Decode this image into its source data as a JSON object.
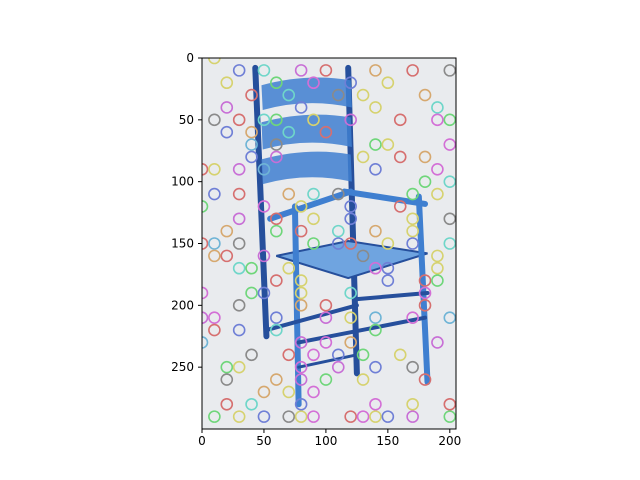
{
  "chart_data": {
    "type": "scatter",
    "description_visible": "image plot of a blue ladder-back chair overlaid with colored hollow circle markers",
    "title": "",
    "xlabel": "",
    "ylabel": "",
    "xlim": [
      0,
      205
    ],
    "ylim": [
      300,
      0
    ],
    "y_inverted": true,
    "grid": false,
    "legend": "none",
    "xticks": [
      0,
      50,
      100,
      150,
      200
    ],
    "yticks": [
      0,
      50,
      100,
      150,
      200,
      250
    ],
    "marker": "hollow-circle",
    "palette": [
      "#d36fd6",
      "#6fd6c9",
      "#d6d26f",
      "#d66f6f",
      "#6f7fd6",
      "#6fd67a",
      "#d6a86f",
      "#8a8a8a",
      "#c86fd6",
      "#6fb4d6"
    ],
    "background_image": {
      "subject": "blue wooden ladder-back armchair with woven seat",
      "bg_color": "#e9ebee",
      "chair_color": "#3f7fd0",
      "chair_dark": "#264f9c"
    },
    "points": [
      {
        "x": 10,
        "y": 0,
        "c": 2
      },
      {
        "x": 30,
        "y": 10,
        "c": 4
      },
      {
        "x": 50,
        "y": 10,
        "c": 1
      },
      {
        "x": 80,
        "y": 10,
        "c": 8
      },
      {
        "x": 100,
        "y": 10,
        "c": 3
      },
      {
        "x": 140,
        "y": 10,
        "c": 6
      },
      {
        "x": 170,
        "y": 10,
        "c": 3
      },
      {
        "x": 200,
        "y": 10,
        "c": 7
      },
      {
        "x": 20,
        "y": 20,
        "c": 2
      },
      {
        "x": 60,
        "y": 20,
        "c": 5
      },
      {
        "x": 90,
        "y": 20,
        "c": 0
      },
      {
        "x": 120,
        "y": 20,
        "c": 4
      },
      {
        "x": 150,
        "y": 20,
        "c": 2
      },
      {
        "x": 40,
        "y": 30,
        "c": 3
      },
      {
        "x": 70,
        "y": 30,
        "c": 1
      },
      {
        "x": 110,
        "y": 30,
        "c": 7
      },
      {
        "x": 130,
        "y": 30,
        "c": 2
      },
      {
        "x": 180,
        "y": 30,
        "c": 6
      },
      {
        "x": 20,
        "y": 40,
        "c": 8
      },
      {
        "x": 80,
        "y": 40,
        "c": 4
      },
      {
        "x": 140,
        "y": 40,
        "c": 2
      },
      {
        "x": 190,
        "y": 40,
        "c": 1
      },
      {
        "x": 10,
        "y": 50,
        "c": 7
      },
      {
        "x": 30,
        "y": 50,
        "c": 3
      },
      {
        "x": 50,
        "y": 50,
        "c": 1
      },
      {
        "x": 60,
        "y": 50,
        "c": 5
      },
      {
        "x": 90,
        "y": 50,
        "c": 2
      },
      {
        "x": 120,
        "y": 50,
        "c": 8
      },
      {
        "x": 160,
        "y": 50,
        "c": 3
      },
      {
        "x": 190,
        "y": 50,
        "c": 0
      },
      {
        "x": 200,
        "y": 50,
        "c": 5
      },
      {
        "x": 20,
        "y": 60,
        "c": 4
      },
      {
        "x": 40,
        "y": 60,
        "c": 6
      },
      {
        "x": 70,
        "y": 60,
        "c": 1
      },
      {
        "x": 100,
        "y": 60,
        "c": 3
      },
      {
        "x": 40,
        "y": 70,
        "c": 9
      },
      {
        "x": 60,
        "y": 70,
        "c": 7
      },
      {
        "x": 140,
        "y": 70,
        "c": 5
      },
      {
        "x": 150,
        "y": 70,
        "c": 2
      },
      {
        "x": 200,
        "y": 70,
        "c": 0
      },
      {
        "x": 40,
        "y": 80,
        "c": 4
      },
      {
        "x": 60,
        "y": 80,
        "c": 8
      },
      {
        "x": 130,
        "y": 80,
        "c": 2
      },
      {
        "x": 160,
        "y": 80,
        "c": 3
      },
      {
        "x": 180,
        "y": 80,
        "c": 6
      },
      {
        "x": 0,
        "y": 90,
        "c": 3
      },
      {
        "x": 10,
        "y": 90,
        "c": 2
      },
      {
        "x": 30,
        "y": 90,
        "c": 8
      },
      {
        "x": 50,
        "y": 90,
        "c": 9
      },
      {
        "x": 140,
        "y": 90,
        "c": 4
      },
      {
        "x": 190,
        "y": 90,
        "c": 0
      },
      {
        "x": 180,
        "y": 100,
        "c": 5
      },
      {
        "x": 200,
        "y": 100,
        "c": 1
      },
      {
        "x": 10,
        "y": 110,
        "c": 4
      },
      {
        "x": 30,
        "y": 110,
        "c": 3
      },
      {
        "x": 70,
        "y": 110,
        "c": 6
      },
      {
        "x": 90,
        "y": 110,
        "c": 1
      },
      {
        "x": 110,
        "y": 110,
        "c": 7
      },
      {
        "x": 170,
        "y": 110,
        "c": 5
      },
      {
        "x": 190,
        "y": 110,
        "c": 2
      },
      {
        "x": 0,
        "y": 120,
        "c": 5
      },
      {
        "x": 50,
        "y": 120,
        "c": 0
      },
      {
        "x": 80,
        "y": 120,
        "c": 2
      },
      {
        "x": 120,
        "y": 120,
        "c": 4
      },
      {
        "x": 160,
        "y": 120,
        "c": 3
      },
      {
        "x": 30,
        "y": 130,
        "c": 8
      },
      {
        "x": 60,
        "y": 130,
        "c": 3
      },
      {
        "x": 90,
        "y": 130,
        "c": 2
      },
      {
        "x": 120,
        "y": 130,
        "c": 4
      },
      {
        "x": 170,
        "y": 130,
        "c": 2
      },
      {
        "x": 200,
        "y": 130,
        "c": 7
      },
      {
        "x": 20,
        "y": 140,
        "c": 6
      },
      {
        "x": 60,
        "y": 140,
        "c": 5
      },
      {
        "x": 80,
        "y": 140,
        "c": 3
      },
      {
        "x": 110,
        "y": 140,
        "c": 1
      },
      {
        "x": 140,
        "y": 140,
        "c": 6
      },
      {
        "x": 170,
        "y": 140,
        "c": 2
      },
      {
        "x": 0,
        "y": 150,
        "c": 3
      },
      {
        "x": 10,
        "y": 150,
        "c": 9
      },
      {
        "x": 30,
        "y": 150,
        "c": 7
      },
      {
        "x": 90,
        "y": 150,
        "c": 5
      },
      {
        "x": 110,
        "y": 150,
        "c": 4
      },
      {
        "x": 120,
        "y": 150,
        "c": 3
      },
      {
        "x": 150,
        "y": 150,
        "c": 2
      },
      {
        "x": 170,
        "y": 150,
        "c": 4
      },
      {
        "x": 200,
        "y": 150,
        "c": 1
      },
      {
        "x": 10,
        "y": 160,
        "c": 6
      },
      {
        "x": 20,
        "y": 160,
        "c": 3
      },
      {
        "x": 50,
        "y": 160,
        "c": 8
      },
      {
        "x": 130,
        "y": 160,
        "c": 7
      },
      {
        "x": 190,
        "y": 160,
        "c": 2
      },
      {
        "x": 30,
        "y": 170,
        "c": 1
      },
      {
        "x": 40,
        "y": 170,
        "c": 5
      },
      {
        "x": 70,
        "y": 170,
        "c": 2
      },
      {
        "x": 140,
        "y": 170,
        "c": 0
      },
      {
        "x": 150,
        "y": 170,
        "c": 4
      },
      {
        "x": 190,
        "y": 170,
        "c": 2
      },
      {
        "x": 60,
        "y": 180,
        "c": 3
      },
      {
        "x": 80,
        "y": 180,
        "c": 2
      },
      {
        "x": 150,
        "y": 180,
        "c": 4
      },
      {
        "x": 180,
        "y": 180,
        "c": 3
      },
      {
        "x": 190,
        "y": 180,
        "c": 5
      },
      {
        "x": 0,
        "y": 190,
        "c": 0
      },
      {
        "x": 40,
        "y": 190,
        "c": 5
      },
      {
        "x": 50,
        "y": 190,
        "c": 4
      },
      {
        "x": 80,
        "y": 190,
        "c": 2
      },
      {
        "x": 120,
        "y": 190,
        "c": 1
      },
      {
        "x": 180,
        "y": 190,
        "c": 0
      },
      {
        "x": 30,
        "y": 200,
        "c": 7
      },
      {
        "x": 80,
        "y": 200,
        "c": 6
      },
      {
        "x": 100,
        "y": 200,
        "c": 3
      },
      {
        "x": 180,
        "y": 200,
        "c": 3
      },
      {
        "x": 0,
        "y": 210,
        "c": 8
      },
      {
        "x": 10,
        "y": 210,
        "c": 0
      },
      {
        "x": 60,
        "y": 210,
        "c": 4
      },
      {
        "x": 100,
        "y": 210,
        "c": 8
      },
      {
        "x": 120,
        "y": 210,
        "c": 2
      },
      {
        "x": 140,
        "y": 210,
        "c": 9
      },
      {
        "x": 170,
        "y": 210,
        "c": 0
      },
      {
        "x": 200,
        "y": 210,
        "c": 9
      },
      {
        "x": 10,
        "y": 220,
        "c": 3
      },
      {
        "x": 30,
        "y": 220,
        "c": 4
      },
      {
        "x": 60,
        "y": 220,
        "c": 1
      },
      {
        "x": 140,
        "y": 220,
        "c": 5
      },
      {
        "x": 0,
        "y": 230,
        "c": 9
      },
      {
        "x": 80,
        "y": 230,
        "c": 8
      },
      {
        "x": 100,
        "y": 230,
        "c": 0
      },
      {
        "x": 120,
        "y": 230,
        "c": 6
      },
      {
        "x": 190,
        "y": 230,
        "c": 8
      },
      {
        "x": 40,
        "y": 240,
        "c": 7
      },
      {
        "x": 70,
        "y": 240,
        "c": 3
      },
      {
        "x": 90,
        "y": 240,
        "c": 0
      },
      {
        "x": 110,
        "y": 240,
        "c": 4
      },
      {
        "x": 130,
        "y": 240,
        "c": 5
      },
      {
        "x": 160,
        "y": 240,
        "c": 2
      },
      {
        "x": 20,
        "y": 250,
        "c": 5
      },
      {
        "x": 30,
        "y": 250,
        "c": 2
      },
      {
        "x": 80,
        "y": 250,
        "c": 0
      },
      {
        "x": 110,
        "y": 250,
        "c": 8
      },
      {
        "x": 140,
        "y": 250,
        "c": 4
      },
      {
        "x": 170,
        "y": 250,
        "c": 7
      },
      {
        "x": 20,
        "y": 260,
        "c": 7
      },
      {
        "x": 60,
        "y": 260,
        "c": 6
      },
      {
        "x": 80,
        "y": 260,
        "c": 8
      },
      {
        "x": 100,
        "y": 260,
        "c": 5
      },
      {
        "x": 130,
        "y": 260,
        "c": 2
      },
      {
        "x": 180,
        "y": 260,
        "c": 3
      },
      {
        "x": 50,
        "y": 270,
        "c": 6
      },
      {
        "x": 70,
        "y": 270,
        "c": 2
      },
      {
        "x": 90,
        "y": 270,
        "c": 0
      },
      {
        "x": 20,
        "y": 280,
        "c": 3
      },
      {
        "x": 40,
        "y": 280,
        "c": 1
      },
      {
        "x": 80,
        "y": 280,
        "c": 4
      },
      {
        "x": 140,
        "y": 280,
        "c": 0
      },
      {
        "x": 170,
        "y": 280,
        "c": 2
      },
      {
        "x": 200,
        "y": 280,
        "c": 3
      },
      {
        "x": 10,
        "y": 290,
        "c": 5
      },
      {
        "x": 30,
        "y": 290,
        "c": 2
      },
      {
        "x": 50,
        "y": 290,
        "c": 4
      },
      {
        "x": 70,
        "y": 290,
        "c": 7
      },
      {
        "x": 80,
        "y": 290,
        "c": 2
      },
      {
        "x": 90,
        "y": 290,
        "c": 0
      },
      {
        "x": 120,
        "y": 290,
        "c": 3
      },
      {
        "x": 130,
        "y": 290,
        "c": 0
      },
      {
        "x": 140,
        "y": 290,
        "c": 2
      },
      {
        "x": 150,
        "y": 290,
        "c": 4
      },
      {
        "x": 170,
        "y": 290,
        "c": 8
      },
      {
        "x": 200,
        "y": 290,
        "c": 5
      }
    ]
  }
}
